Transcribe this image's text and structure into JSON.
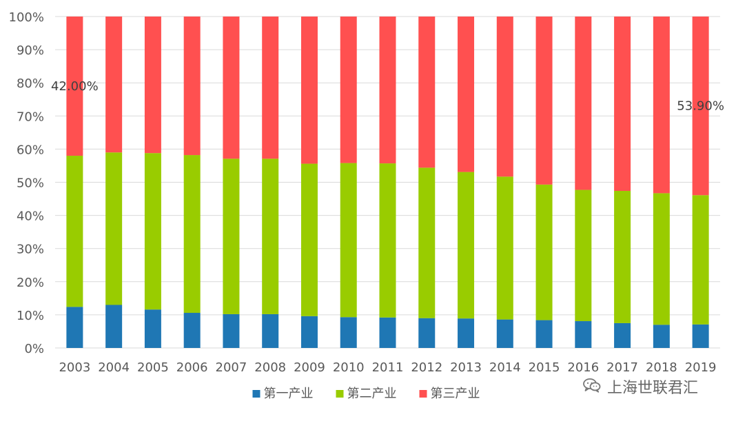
{
  "chart_data": {
    "type": "bar",
    "stacked": true,
    "categories": [
      "2003",
      "2004",
      "2005",
      "2006",
      "2007",
      "2008",
      "2009",
      "2010",
      "2011",
      "2012",
      "2013",
      "2014",
      "2015",
      "2016",
      "2017",
      "2018",
      "2019"
    ],
    "series": [
      {
        "name": "第一产业",
        "color": "#1f77b4",
        "values": [
          12.4,
          13.0,
          11.6,
          10.6,
          10.2,
          10.2,
          9.6,
          9.3,
          9.2,
          9.0,
          8.9,
          8.6,
          8.4,
          8.1,
          7.5,
          7.0,
          7.1
        ]
      },
      {
        "name": "第二产业",
        "color": "#99cc00",
        "values": [
          45.6,
          46.0,
          47.2,
          47.6,
          46.9,
          46.9,
          46.0,
          46.5,
          46.5,
          45.4,
          44.2,
          43.1,
          40.9,
          39.6,
          39.9,
          39.7,
          39.0
        ]
      },
      {
        "name": "第三产业",
        "color": "#ff5050",
        "values": [
          42.0,
          41.0,
          41.2,
          41.8,
          42.9,
          42.9,
          44.4,
          44.2,
          44.3,
          45.6,
          46.9,
          48.3,
          50.7,
          52.3,
          52.6,
          53.3,
          53.9
        ]
      }
    ],
    "y_ticks": [
      "0%",
      "10%",
      "20%",
      "30%",
      "40%",
      "50%",
      "60%",
      "70%",
      "80%",
      "90%",
      "100%"
    ],
    "ylim": [
      0,
      100
    ],
    "grid": true,
    "legend": "bottom",
    "annotations": [
      {
        "category": "2003",
        "series": "第三产业",
        "text": "42.00%"
      },
      {
        "category": "2019",
        "series": "第三产业",
        "text": "53.90%"
      }
    ]
  },
  "watermark": {
    "text": "上海世联君汇",
    "icon": "wechat-icon"
  }
}
